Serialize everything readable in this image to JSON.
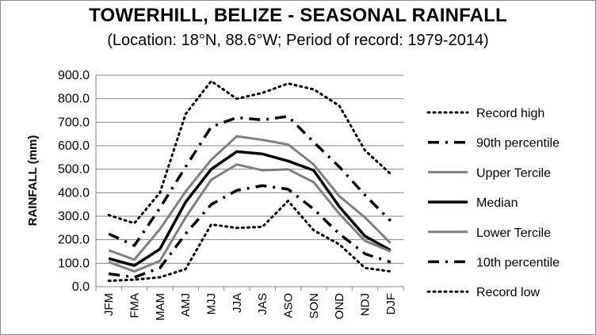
{
  "chart_data": {
    "type": "line",
    "title": "TOWERHILL, BELIZE - SEASONAL RAINFALL",
    "subtitle": "(Location: 18°N, 88.6°W; Period of record: 1979-2014)",
    "xlabel": "",
    "ylabel": "RAINFALL (mm)",
    "ylim": [
      0,
      900
    ],
    "yticks": [
      "0.0",
      "100.0",
      "200.0",
      "300.0",
      "400.0",
      "500.0",
      "600.0",
      "700.0",
      "800.0",
      "900.0"
    ],
    "categories": [
      "JFM",
      "FMA",
      "MAM",
      "AMJ",
      "MJJ",
      "JJA",
      "JAS",
      "ASO",
      "SON",
      "OND",
      "NDJ",
      "DJF"
    ],
    "grid": true,
    "legend_position": "right",
    "series": [
      {
        "name": "Record high",
        "color": "#000000",
        "style": "dotted",
        "values": [
          305,
          270,
          400,
          735,
          875,
          800,
          825,
          865,
          840,
          770,
          580,
          480
        ]
      },
      {
        "name": "90th percentile",
        "color": "#000000",
        "style": "dashdot",
        "values": [
          225,
          175,
          335,
          510,
          680,
          720,
          710,
          725,
          615,
          510,
          390,
          280
        ]
      },
      {
        "name": "Upper Tercile",
        "color": "#808080",
        "style": "solid",
        "values": [
          155,
          115,
          245,
          405,
          540,
          640,
          625,
          605,
          520,
          385,
          295,
          185
        ]
      },
      {
        "name": "Median",
        "color": "#000000",
        "style": "solid-bold",
        "values": [
          120,
          90,
          160,
          360,
          500,
          575,
          565,
          535,
          495,
          340,
          215,
          155
        ]
      },
      {
        "name": "Lower Tercile",
        "color": "#808080",
        "style": "solid",
        "values": [
          105,
          65,
          110,
          295,
          455,
          520,
          495,
          500,
          445,
          310,
          195,
          150
        ]
      },
      {
        "name": "10th percentile",
        "color": "#000000",
        "style": "dashdot",
        "values": [
          55,
          40,
          80,
          225,
          350,
          410,
          430,
          415,
          330,
          225,
          140,
          105
        ]
      },
      {
        "name": "Record low",
        "color": "#000000",
        "style": "dotted",
        "values": [
          25,
          30,
          40,
          75,
          265,
          250,
          255,
          365,
          240,
          180,
          80,
          65
        ]
      }
    ]
  }
}
